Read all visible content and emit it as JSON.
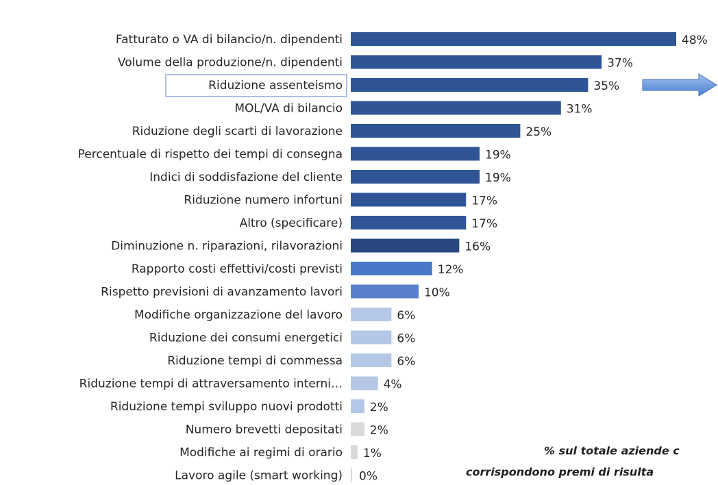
{
  "chart_data": {
    "type": "bar",
    "orientation": "horizontal",
    "categories": [
      "Fatturato o VA di bilancio/n. dipendenti",
      "Volume della produzione/n. dipendenti",
      "Riduzione assenteismo",
      "MOL/VA di bilancio",
      "Riduzione degli scarti di lavorazione",
      "Percentuale di rispetto dei tempi di consegna",
      "Indici di soddisfazione del cliente",
      "Riduzione numero infortuni",
      "Altro (specificare)",
      "Diminuzione n. riparazioni, rilavorazioni",
      "Rapporto costi effettivi/costi previsti",
      "Rispetto previsioni di avanzamento lavori",
      "Modifiche organizzazione del lavoro",
      "Riduzione dei consumi energetici",
      "Riduzione tempi di commessa",
      "Riduzione tempi di attraversamento interni…",
      "Riduzione tempi sviluppo nuovi prodotti",
      "Numero brevetti depositati",
      "Modifiche ai regimi di orario",
      "Lavoro agile (smart working)"
    ],
    "values": [
      48,
      37,
      35,
      31,
      25,
      19,
      19,
      17,
      17,
      16,
      12,
      10,
      6,
      6,
      6,
      4,
      2,
      2,
      1,
      0
    ],
    "value_labels": [
      "48%",
      "37%",
      "35%",
      "31%",
      "25%",
      "19%",
      "19%",
      "17%",
      "17%",
      "16%",
      "12%",
      "10%",
      "6%",
      "6%",
      "6%",
      "4%",
      "2%",
      "2%",
      "1%",
      "0%"
    ],
    "colors": [
      "#2f5597",
      "#2f5597",
      "#2f5597",
      "#2f5597",
      "#2f5597",
      "#2f5597",
      "#2f5597",
      "#2f5597",
      "#2f5597",
      "#29487f",
      "#4a78c8",
      "#5b80cb",
      "#b4c7e7",
      "#b4c7e7",
      "#b4c7e7",
      "#b4c7e7",
      "#b4c7e7",
      "#d9d9d9",
      "#d9d9d9",
      "#d9d9d9"
    ],
    "annotations": [
      "% sul totale aziende c",
      "corrispondono premi di risulta"
    ]
  }
}
